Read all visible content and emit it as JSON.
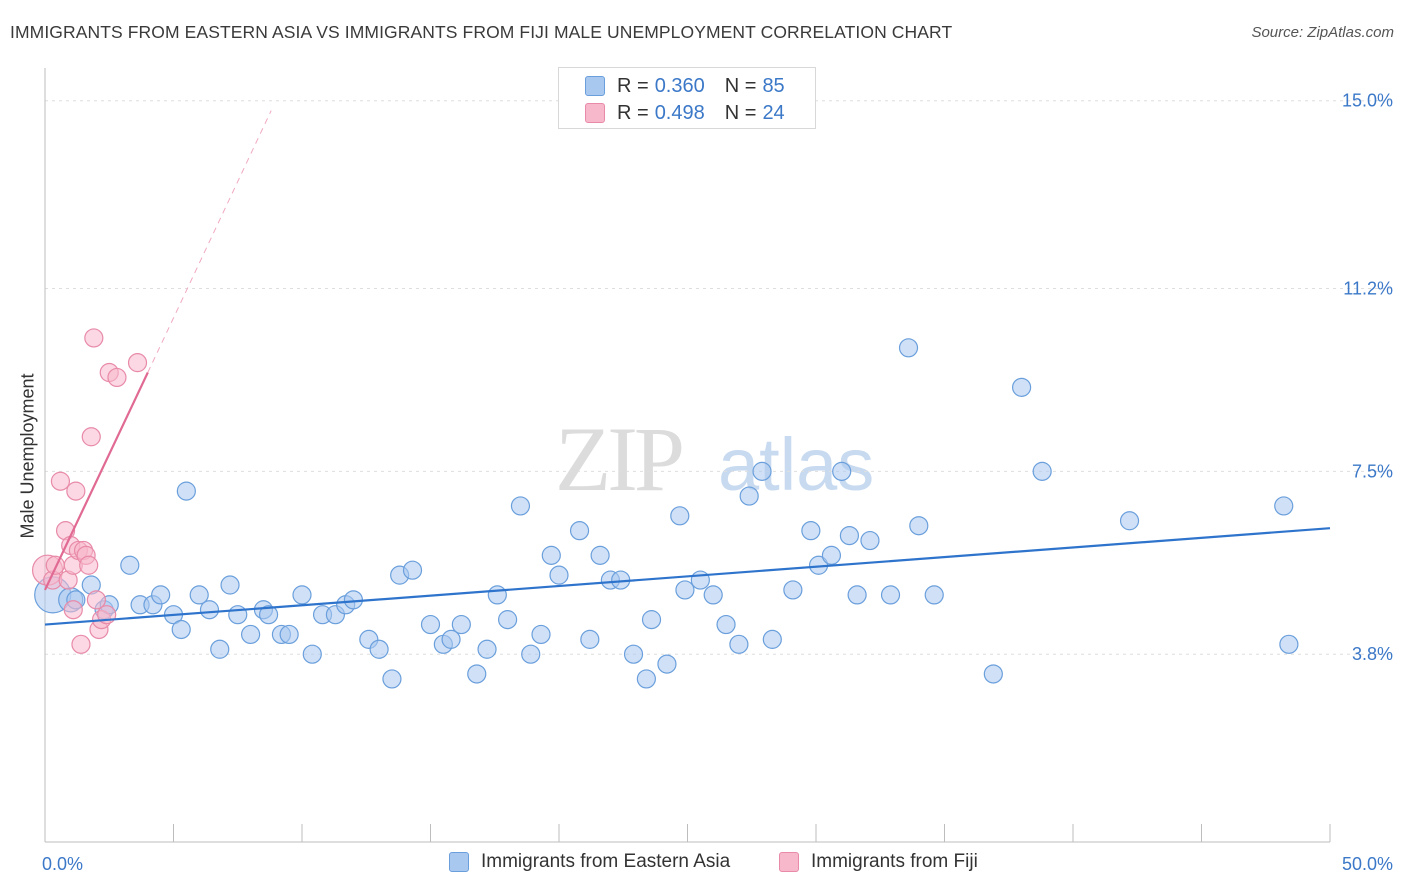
{
  "chart_data": {
    "type": "scatter",
    "title": "IMMIGRANTS FROM EASTERN ASIA VS IMMIGRANTS FROM FIJI MALE UNEMPLOYMENT CORRELATION CHART",
    "source": "Source: ZipAtlas.com",
    "watermark": {
      "zip": "ZIP",
      "atlas": "atlas"
    },
    "xlabel": "",
    "ylabel": "Male Unemployment",
    "xlim": [
      0,
      50
    ],
    "ylim": [
      0,
      15.5
    ],
    "x_tick_labels": [
      {
        "value": 0,
        "label": "0.0%"
      },
      {
        "value": 50,
        "label": "50.0%"
      }
    ],
    "y_tick_labels": [
      {
        "value": 3.8,
        "label": "3.8%"
      },
      {
        "value": 7.5,
        "label": "7.5%"
      },
      {
        "value": 11.2,
        "label": "11.2%"
      },
      {
        "value": 15.0,
        "label": "15.0%"
      }
    ],
    "legend": {
      "r_label": "R =",
      "n_label": "N =",
      "entries": [
        {
          "name": "Immigrants from Eastern Asia",
          "r": "0.360",
          "n": "85"
        },
        {
          "name": "Immigrants from Fiji",
          "r": "0.498",
          "n": "24"
        }
      ]
    },
    "colors": {
      "blue_fill": "#a9c8f0",
      "blue_stroke": "#6a9fdc",
      "blue_line": "#2f74cc",
      "pink_fill": "#f7b8cc",
      "pink_stroke": "#e88aa8",
      "pink_line": "#e06a93",
      "tick_text": "#3b78c8"
    },
    "series": [
      {
        "name": "Immigrants from Eastern Asia",
        "trend": {
          "x": [
            0,
            50
          ],
          "y": [
            4.4,
            6.35
          ]
        },
        "points": [
          [
            0.3,
            5.0,
            4
          ],
          [
            1.0,
            4.9,
            2
          ],
          [
            1.2,
            4.9,
            1
          ],
          [
            1.8,
            5.2,
            1
          ],
          [
            2.3,
            4.7,
            1
          ],
          [
            2.5,
            4.8,
            1
          ],
          [
            3.3,
            5.6,
            1
          ],
          [
            3.7,
            4.8,
            1
          ],
          [
            4.2,
            4.8,
            1
          ],
          [
            4.5,
            5.0,
            1
          ],
          [
            5.0,
            4.6,
            1
          ],
          [
            5.3,
            4.3,
            1
          ],
          [
            5.5,
            7.1,
            1
          ],
          [
            6.0,
            5.0,
            1
          ],
          [
            6.4,
            4.7,
            1
          ],
          [
            6.8,
            3.9,
            1
          ],
          [
            7.2,
            5.2,
            1
          ],
          [
            7.5,
            4.6,
            1
          ],
          [
            8.0,
            4.2,
            1
          ],
          [
            8.5,
            4.7,
            1
          ],
          [
            8.7,
            4.6,
            1
          ],
          [
            9.2,
            4.2,
            1
          ],
          [
            9.5,
            4.2,
            1
          ],
          [
            10.0,
            5.0,
            1
          ],
          [
            10.4,
            3.8,
            1
          ],
          [
            10.8,
            4.6,
            1
          ],
          [
            11.3,
            4.6,
            1
          ],
          [
            11.7,
            4.8,
            1
          ],
          [
            12.0,
            4.9,
            1
          ],
          [
            12.6,
            4.1,
            1
          ],
          [
            13.0,
            3.9,
            1
          ],
          [
            13.5,
            3.3,
            1
          ],
          [
            13.8,
            5.4,
            1
          ],
          [
            14.3,
            5.5,
            1
          ],
          [
            15.0,
            4.4,
            1
          ],
          [
            15.5,
            4.0,
            1
          ],
          [
            15.8,
            4.1,
            1
          ],
          [
            16.2,
            4.4,
            1
          ],
          [
            16.8,
            3.4,
            1
          ],
          [
            17.2,
            3.9,
            1
          ],
          [
            17.6,
            5.0,
            1
          ],
          [
            18.0,
            4.5,
            1
          ],
          [
            18.5,
            6.8,
            1
          ],
          [
            18.9,
            3.8,
            1
          ],
          [
            19.3,
            4.2,
            1
          ],
          [
            19.7,
            5.8,
            1
          ],
          [
            20.0,
            5.4,
            1
          ],
          [
            20.8,
            6.3,
            1
          ],
          [
            21.2,
            4.1,
            1
          ],
          [
            21.6,
            5.8,
            1
          ],
          [
            22.0,
            5.3,
            1
          ],
          [
            22.4,
            5.3,
            1
          ],
          [
            22.9,
            3.8,
            1
          ],
          [
            23.4,
            3.3,
            1
          ],
          [
            23.6,
            4.5,
            1
          ],
          [
            24.2,
            3.6,
            1
          ],
          [
            24.7,
            6.6,
            1
          ],
          [
            24.9,
            5.1,
            1
          ],
          [
            25.5,
            5.3,
            1
          ],
          [
            26.0,
            5.0,
            1
          ],
          [
            26.5,
            4.4,
            1
          ],
          [
            27.0,
            4.0,
            1
          ],
          [
            27.4,
            7.0,
            1
          ],
          [
            27.9,
            7.5,
            1
          ],
          [
            28.3,
            4.1,
            1
          ],
          [
            29.1,
            5.1,
            1
          ],
          [
            29.8,
            6.3,
            1
          ],
          [
            30.1,
            5.6,
            1
          ],
          [
            30.6,
            5.8,
            1
          ],
          [
            31.0,
            7.5,
            1
          ],
          [
            31.3,
            6.2,
            1
          ],
          [
            31.6,
            5.0,
            1
          ],
          [
            32.1,
            6.1,
            1
          ],
          [
            32.9,
            5.0,
            1
          ],
          [
            33.6,
            10.0,
            1
          ],
          [
            34.0,
            6.4,
            1
          ],
          [
            34.6,
            5.0,
            1
          ],
          [
            36.9,
            3.4,
            1
          ],
          [
            38.0,
            9.2,
            1
          ],
          [
            38.8,
            7.5,
            1
          ],
          [
            42.2,
            6.5,
            1
          ],
          [
            48.2,
            6.8,
            1
          ],
          [
            48.4,
            4.0,
            1
          ]
        ]
      },
      {
        "name": "Immigrants from Fiji",
        "trend": {
          "x": [
            0,
            4
          ],
          "y": [
            5.1,
            9.5
          ]
        },
        "trend_extension": {
          "x": [
            4,
            8.8
          ],
          "y": [
            9.5,
            14.8
          ]
        },
        "points": [
          [
            0.1,
            5.5,
            3
          ],
          [
            0.3,
            5.3,
            1
          ],
          [
            0.4,
            5.6,
            1
          ],
          [
            0.6,
            7.3,
            1
          ],
          [
            0.8,
            6.3,
            1
          ],
          [
            0.9,
            5.3,
            1
          ],
          [
            1.0,
            6.0,
            1
          ],
          [
            1.1,
            5.6,
            1
          ],
          [
            1.2,
            7.1,
            1
          ],
          [
            1.3,
            5.9,
            1
          ],
          [
            1.4,
            4.0,
            1
          ],
          [
            1.5,
            5.9,
            1
          ],
          [
            1.6,
            5.8,
            1
          ],
          [
            1.7,
            5.6,
            1
          ],
          [
            1.8,
            8.2,
            1
          ],
          [
            1.9,
            10.2,
            1
          ],
          [
            2.0,
            4.9,
            1
          ],
          [
            2.1,
            4.3,
            1
          ],
          [
            2.2,
            4.5,
            1
          ],
          [
            2.4,
            4.6,
            1
          ],
          [
            2.5,
            9.5,
            1
          ],
          [
            2.8,
            9.4,
            1
          ],
          [
            3.6,
            9.7,
            1
          ],
          [
            1.1,
            4.7,
            1
          ]
        ]
      }
    ]
  }
}
